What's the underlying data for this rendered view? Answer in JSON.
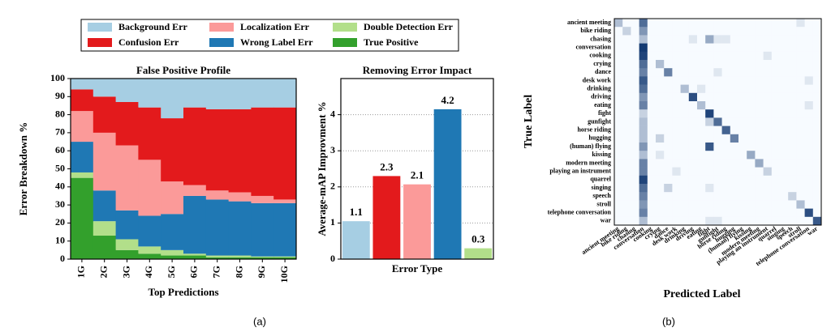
{
  "chart_data": [
    {
      "type": "area",
      "stacked": true,
      "title": "False Positive Profile",
      "x_label": "Top Predictions",
      "y_label": "Error Breakdown %",
      "categories": [
        "1G",
        "2G",
        "3G",
        "4G",
        "5G",
        "6G",
        "7G",
        "8G",
        "9G",
        "10G"
      ],
      "series": [
        {
          "name": "Background Err",
          "color": "#a6cee3",
          "values": [
            6,
            10,
            13,
            16,
            22,
            16,
            17,
            17,
            16,
            16
          ]
        },
        {
          "name": "Localization Err",
          "color": "#fb9a99",
          "values": [
            17,
            32,
            36,
            31,
            18,
            6,
            5,
            5,
            4,
            2
          ]
        },
        {
          "name": "Double Detection Err",
          "color": "#b2df8a",
          "values": [
            3,
            8,
            6,
            4,
            3,
            1,
            1,
            1,
            0.5,
            0.5
          ]
        },
        {
          "name": "Confusion Err",
          "color": "#e31a1c",
          "values": [
            12,
            20,
            24,
            29,
            35,
            43,
            45,
            46,
            49,
            51
          ]
        },
        {
          "name": "Wrong Label Err",
          "color": "#1f78b4",
          "values": [
            17,
            17,
            16,
            17,
            20,
            32,
            31,
            30,
            29.5,
            29.5
          ]
        },
        {
          "name": "True Positive",
          "color": "#33a02c",
          "values": [
            45,
            13,
            5,
            3,
            2,
            2,
            1,
            1,
            1,
            1
          ]
        }
      ],
      "ylim": [
        0,
        100
      ],
      "yticks": [
        0,
        10,
        20,
        30,
        40,
        50,
        60,
        70,
        80,
        90,
        100
      ],
      "grid": false
    },
    {
      "type": "bar",
      "title": "Removing Error Impact",
      "x_label": "Error Type",
      "y_label": "Average-mAP Improvment %",
      "values": [
        1.05,
        2.3,
        2.07,
        4.15,
        0.3
      ],
      "value_labels": [
        "1.1",
        "2.3",
        "2.1",
        "4.2",
        "0.3"
      ],
      "colors": [
        "#a6cee3",
        "#e31a1c",
        "#fb9a99",
        "#1f78b4",
        "#b2df8a"
      ],
      "ylim": [
        0,
        5
      ],
      "yticks": [
        0,
        1,
        2,
        3,
        4
      ],
      "grid": true
    },
    {
      "type": "heatmap",
      "x_label": "Predicted Label",
      "y_label": "True Label",
      "categories": [
        "ancient meeting",
        "bike riding",
        "chasing",
        "conversation",
        "cooking",
        "crying",
        "dance",
        "desk work",
        "drinking",
        "driving",
        "eating",
        "fight",
        "gunfight",
        "horse riding",
        "hugging",
        "(human) flying",
        "kissing",
        "modern meeting",
        "playing an instrument",
        "quarrel",
        "singing",
        "speech",
        "stroll",
        "telephone conversation",
        "war"
      ],
      "colormap": [
        "#f7fbff",
        "#08306b"
      ],
      "vlim": [
        0,
        1
      ],
      "matrix": [
        [
          0.3,
          0,
          0,
          0.7,
          0,
          0,
          0,
          0,
          0,
          0,
          0,
          0,
          0,
          0,
          0,
          0,
          0,
          0,
          0,
          0,
          0,
          0,
          0.1,
          0,
          0
        ],
        [
          0,
          0.2,
          0,
          0.5,
          0,
          0,
          0,
          0,
          0,
          0,
          0,
          0,
          0,
          0,
          0,
          0,
          0,
          0,
          0,
          0,
          0,
          0,
          0,
          0,
          0
        ],
        [
          0,
          0,
          0,
          0.3,
          0,
          0,
          0,
          0,
          0,
          0.1,
          0,
          0.4,
          0.1,
          0.1,
          0,
          0,
          0,
          0,
          0,
          0,
          0,
          0,
          0,
          0,
          0
        ],
        [
          0,
          0,
          0,
          0.95,
          0,
          0,
          0,
          0,
          0,
          0,
          0,
          0,
          0,
          0,
          0,
          0,
          0,
          0,
          0,
          0,
          0,
          0,
          0,
          0,
          0
        ],
        [
          0,
          0,
          0,
          0.9,
          0,
          0,
          0,
          0,
          0,
          0,
          0,
          0,
          0,
          0,
          0,
          0,
          0,
          0,
          0.1,
          0,
          0,
          0,
          0,
          0,
          0
        ],
        [
          0,
          0,
          0,
          0.7,
          0,
          0.3,
          0,
          0,
          0,
          0,
          0,
          0,
          0,
          0,
          0,
          0,
          0,
          0,
          0,
          0,
          0,
          0,
          0,
          0,
          0
        ],
        [
          0,
          0,
          0,
          0.6,
          0,
          0,
          0.6,
          0,
          0,
          0,
          0,
          0,
          0.1,
          0,
          0,
          0,
          0,
          0,
          0,
          0,
          0,
          0,
          0,
          0,
          0
        ],
        [
          0,
          0,
          0,
          0.8,
          0,
          0,
          0,
          0,
          0,
          0,
          0,
          0,
          0,
          0,
          0,
          0,
          0,
          0,
          0,
          0,
          0,
          0,
          0,
          0.1,
          0
        ],
        [
          0,
          0,
          0,
          0.7,
          0,
          0,
          0,
          0,
          0.3,
          0,
          0.1,
          0,
          0,
          0,
          0,
          0,
          0,
          0,
          0,
          0,
          0,
          0,
          0,
          0,
          0
        ],
        [
          0,
          0,
          0,
          0.5,
          0,
          0,
          0,
          0,
          0,
          0.85,
          0,
          0,
          0,
          0,
          0,
          0,
          0,
          0,
          0,
          0,
          0,
          0,
          0,
          0,
          0
        ],
        [
          0,
          0,
          0,
          0.6,
          0,
          0,
          0,
          0,
          0,
          0,
          0.3,
          0,
          0,
          0,
          0,
          0,
          0,
          0,
          0,
          0,
          0,
          0,
          0,
          0.1,
          0
        ],
        [
          0,
          0,
          0,
          0.2,
          0,
          0,
          0,
          0,
          0,
          0,
          0,
          0.9,
          0,
          0,
          0,
          0,
          0,
          0,
          0,
          0,
          0,
          0,
          0,
          0,
          0
        ],
        [
          0,
          0,
          0,
          0.3,
          0,
          0,
          0,
          0,
          0,
          0,
          0,
          0.2,
          0.7,
          0,
          0,
          0,
          0,
          0,
          0,
          0,
          0,
          0,
          0,
          0,
          0
        ],
        [
          0,
          0,
          0,
          0.3,
          0,
          0,
          0,
          0,
          0,
          0,
          0,
          0,
          0,
          0.75,
          0,
          0,
          0,
          0,
          0,
          0,
          0,
          0,
          0,
          0,
          0
        ],
        [
          0,
          0,
          0,
          0.3,
          0,
          0.2,
          0,
          0,
          0,
          0,
          0,
          0,
          0,
          0,
          0.6,
          0,
          0,
          0,
          0,
          0,
          0,
          0,
          0,
          0,
          0
        ],
        [
          0,
          0,
          0,
          0.5,
          0,
          0,
          0,
          0,
          0,
          0,
          0,
          0.8,
          0,
          0,
          0,
          0,
          0,
          0,
          0,
          0,
          0,
          0,
          0,
          0,
          0
        ],
        [
          0,
          0,
          0,
          0.3,
          0,
          0.1,
          0,
          0,
          0,
          0,
          0,
          0,
          0,
          0,
          0,
          0,
          0.4,
          0,
          0,
          0,
          0,
          0,
          0,
          0,
          0
        ],
        [
          0,
          0,
          0,
          0.6,
          0,
          0,
          0,
          0,
          0,
          0,
          0,
          0,
          0,
          0,
          0,
          0,
          0,
          0.4,
          0,
          0,
          0,
          0,
          0,
          0,
          0
        ],
        [
          0,
          0,
          0,
          0.6,
          0,
          0,
          0,
          0.1,
          0,
          0,
          0,
          0,
          0,
          0,
          0,
          0,
          0,
          0,
          0.2,
          0,
          0,
          0,
          0,
          0,
          0
        ],
        [
          0,
          0,
          0,
          0.9,
          0,
          0,
          0,
          0,
          0,
          0,
          0,
          0,
          0,
          0,
          0,
          0,
          0,
          0,
          0,
          0,
          0,
          0,
          0,
          0,
          0
        ],
        [
          0,
          0,
          0,
          0.7,
          0,
          0,
          0.2,
          0,
          0,
          0,
          0,
          0.1,
          0,
          0,
          0,
          0,
          0,
          0,
          0,
          0,
          0,
          0,
          0,
          0,
          0
        ],
        [
          0,
          0,
          0,
          0.6,
          0,
          0,
          0,
          0,
          0,
          0,
          0,
          0,
          0,
          0,
          0,
          0,
          0,
          0,
          0,
          0,
          0,
          0.2,
          0,
          0,
          0
        ],
        [
          0,
          0,
          0,
          0.5,
          0,
          0,
          0,
          0,
          0,
          0,
          0,
          0,
          0,
          0,
          0,
          0,
          0,
          0,
          0,
          0,
          0,
          0,
          0.3,
          0,
          0
        ],
        [
          0,
          0,
          0,
          0.6,
          0,
          0,
          0,
          0,
          0,
          0,
          0,
          0,
          0,
          0,
          0,
          0,
          0,
          0,
          0,
          0,
          0,
          0,
          0,
          0.85,
          0
        ],
        [
          0,
          0,
          0,
          0.3,
          0,
          0,
          0,
          0,
          0,
          0,
          0,
          0.1,
          0.1,
          0,
          0,
          0,
          0,
          0,
          0,
          0,
          0,
          0,
          0,
          0,
          0.8
        ]
      ]
    }
  ],
  "captions": [
    "(a)",
    "(b)"
  ]
}
